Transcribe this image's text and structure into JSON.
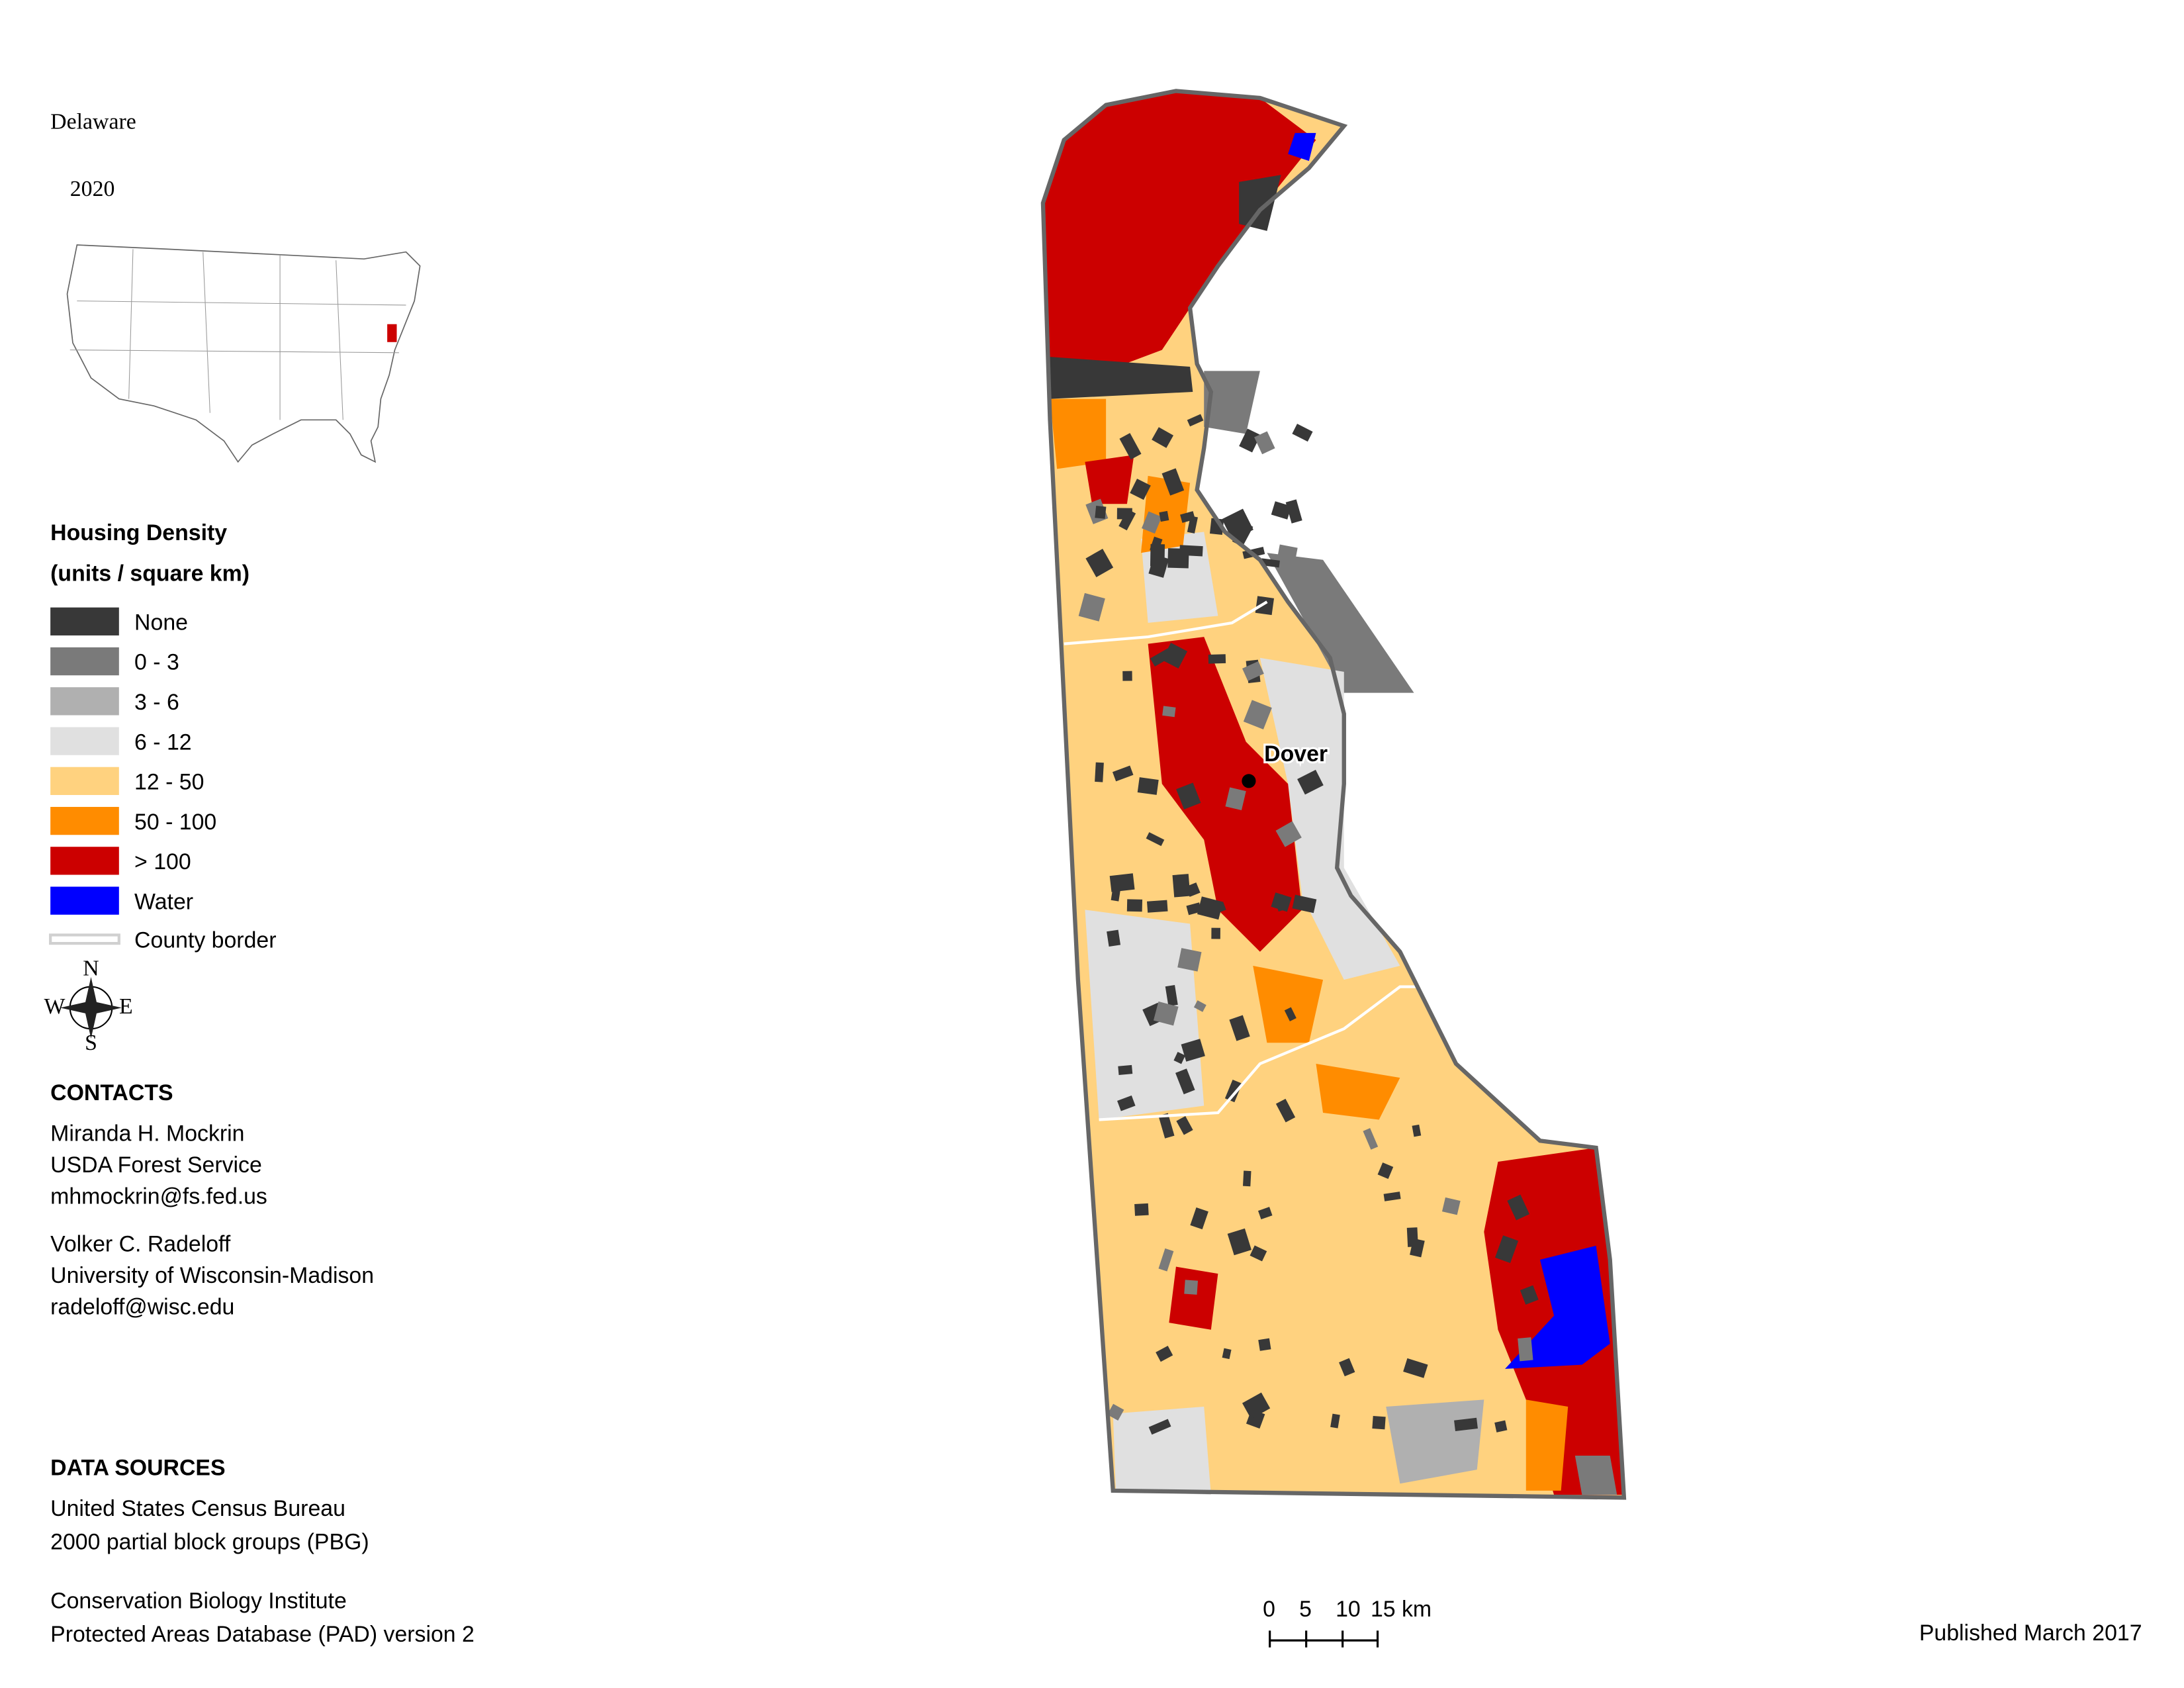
{
  "title": "Delaware",
  "subtitle": "2020",
  "legend": {
    "title": "Housing Density",
    "subtitle": "(units / square km)",
    "items": [
      {
        "label": "None",
        "color": "#383838"
      },
      {
        "label": "0 - 3",
        "color": "#7a7a7a"
      },
      {
        "label": "3 - 6",
        "color": "#b0b0b0"
      },
      {
        "label": "6 - 12",
        "color": "#e0e0e0"
      },
      {
        "label": "12 - 50",
        "color": "#ffd27f"
      },
      {
        "label": "50 - 100",
        "color": "#ff8c00"
      },
      {
        "label": "> 100",
        "color": "#cc0000"
      },
      {
        "label": "Water",
        "color": "#0000ff"
      }
    ],
    "county_border": {
      "label": "County border",
      "color": "#d0d0d0"
    }
  },
  "compass": {
    "n": "N",
    "e": "E",
    "s": "S",
    "w": "W"
  },
  "contacts": {
    "heading": "CONTACTS",
    "people": [
      [
        "Miranda H. Mockrin",
        "USDA Forest Service",
        "mhmockrin@fs.fed.us"
      ],
      [
        "Volker C. Radeloff",
        "University of Wisconsin-Madison",
        "radeloff@wisc.edu"
      ]
    ]
  },
  "data_sources": {
    "heading": "DATA SOURCES",
    "groups": [
      [
        "United States Census Bureau",
        "2000 partial block groups (PBG)"
      ],
      [
        "Conservation Biology Institute",
        "Protected Areas Database (PAD) version 2"
      ]
    ]
  },
  "map": {
    "city": "Dover"
  },
  "scale_bar": {
    "labels": [
      "0",
      "5",
      "10",
      "15 km"
    ]
  },
  "published": "Published March 2017"
}
